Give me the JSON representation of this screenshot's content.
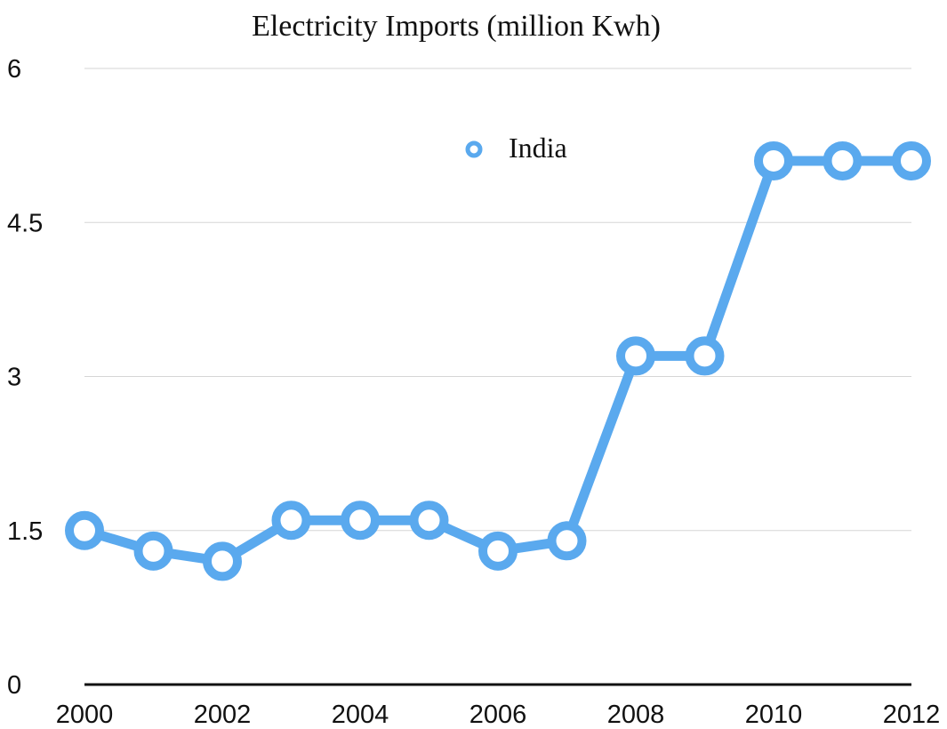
{
  "chart_data": {
    "type": "line",
    "title": "Electricity Imports (million Kwh)",
    "xlabel": "",
    "ylabel": "",
    "x": [
      2000,
      2001,
      2002,
      2003,
      2004,
      2005,
      2006,
      2007,
      2008,
      2009,
      2010,
      2011,
      2012
    ],
    "series": [
      {
        "name": "India",
        "color": "#5aa9ee",
        "values": [
          1.5,
          1.3,
          1.2,
          1.6,
          1.6,
          1.6,
          1.3,
          1.4,
          3.2,
          3.2,
          5.1,
          5.1,
          5.1
        ]
      }
    ],
    "xlim": [
      2000,
      2012
    ],
    "ylim": [
      0,
      6
    ],
    "yticks": [
      0,
      1.5,
      3,
      4.5,
      6
    ],
    "ytick_labels": [
      "0",
      "1.5",
      "3",
      "4.5",
      "6"
    ],
    "xticks": [
      2000,
      2002,
      2004,
      2006,
      2008,
      2010,
      2012
    ],
    "xtick_labels": [
      "2000",
      "2002",
      "2004",
      "2006",
      "2008",
      "2010",
      "2012"
    ],
    "grid": true,
    "legend_position": "top-center",
    "background": "#ffffff"
  }
}
